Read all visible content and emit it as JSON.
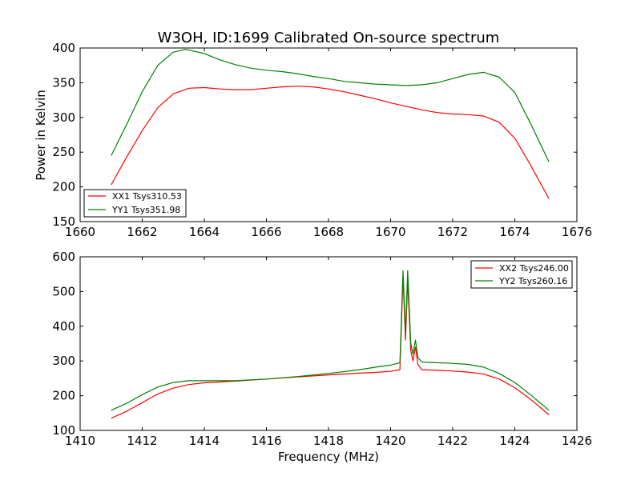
{
  "chart_data": [
    {
      "type": "line",
      "title": "W3OH, ID:1699 Calibrated On-source spectrum",
      "xlabel": "",
      "ylabel": "Power in Kelvin",
      "xlim": [
        1660,
        1676
      ],
      "ylim": [
        150,
        400
      ],
      "x_ticks": [
        "1660",
        "1662",
        "1664",
        "1666",
        "1668",
        "1670",
        "1672",
        "1674",
        "1676"
      ],
      "y_ticks": [
        "150",
        "200",
        "250",
        "300",
        "350",
        "400"
      ],
      "legend_position": "lower-left",
      "series": [
        {
          "name": "XX1 Tsys310.53",
          "color": "#ff0000",
          "points": [
            [
              1661.0,
              203
            ],
            [
              1661.5,
              243
            ],
            [
              1662.0,
              281
            ],
            [
              1662.5,
              314
            ],
            [
              1663.0,
              334
            ],
            [
              1663.5,
              342
            ],
            [
              1664.0,
              343
            ],
            [
              1664.5,
              341
            ],
            [
              1665.0,
              340
            ],
            [
              1665.5,
              340
            ],
            [
              1666.0,
              342
            ],
            [
              1666.5,
              344
            ],
            [
              1667.0,
              345
            ],
            [
              1667.5,
              344
            ],
            [
              1668.0,
              341
            ],
            [
              1668.5,
              337
            ],
            [
              1669.0,
              332
            ],
            [
              1669.5,
              327
            ],
            [
              1670.0,
              321
            ],
            [
              1670.5,
              316
            ],
            [
              1671.0,
              311
            ],
            [
              1671.5,
              307
            ],
            [
              1672.0,
              305
            ],
            [
              1672.5,
              304
            ],
            [
              1673.0,
              302
            ],
            [
              1673.5,
              293
            ],
            [
              1674.0,
              270
            ],
            [
              1674.5,
              232
            ],
            [
              1675.1,
              183
            ]
          ]
        },
        {
          "name": "YY1 Tsys351.98",
          "color": "#008000",
          "points": [
            [
              1661.0,
              245
            ],
            [
              1661.5,
              290
            ],
            [
              1662.0,
              337
            ],
            [
              1662.5,
              375
            ],
            [
              1663.0,
              394
            ],
            [
              1663.4,
              398
            ],
            [
              1664.0,
              392
            ],
            [
              1664.5,
              383
            ],
            [
              1665.0,
              376
            ],
            [
              1665.5,
              371
            ],
            [
              1666.0,
              368
            ],
            [
              1666.5,
              366
            ],
            [
              1667.0,
              363
            ],
            [
              1667.5,
              359
            ],
            [
              1668.0,
              356
            ],
            [
              1668.5,
              352
            ],
            [
              1669.0,
              350
            ],
            [
              1669.5,
              348
            ],
            [
              1670.0,
              347
            ],
            [
              1670.5,
              346
            ],
            [
              1671.0,
              347
            ],
            [
              1671.5,
              350
            ],
            [
              1672.0,
              356
            ],
            [
              1672.5,
              362
            ],
            [
              1673.0,
              365
            ],
            [
              1673.5,
              358
            ],
            [
              1674.0,
              336
            ],
            [
              1674.5,
              292
            ],
            [
              1675.1,
              236
            ]
          ]
        }
      ]
    },
    {
      "type": "line",
      "title": "",
      "xlabel": "Frequency (MHz)",
      "ylabel": "",
      "xlim": [
        1410,
        1426
      ],
      "ylim": [
        100,
        600
      ],
      "x_ticks": [
        "1410",
        "1412",
        "1414",
        "1416",
        "1418",
        "1420",
        "1422",
        "1424",
        "1426"
      ],
      "y_ticks": [
        "100",
        "200",
        "300",
        "400",
        "500",
        "600"
      ],
      "legend_position": "upper-right",
      "series": [
        {
          "name": "XX2 Tsys246.00",
          "color": "#ff0000",
          "points": [
            [
              1411.0,
              135
            ],
            [
              1411.5,
              155
            ],
            [
              1412.0,
              180
            ],
            [
              1412.5,
              205
            ],
            [
              1413.0,
              222
            ],
            [
              1413.5,
              232
            ],
            [
              1414.0,
              237
            ],
            [
              1415.0,
              242
            ],
            [
              1416.0,
              248
            ],
            [
              1417.0,
              254
            ],
            [
              1418.0,
              260
            ],
            [
              1419.0,
              265
            ],
            [
              1419.5,
              267
            ],
            [
              1420.0,
              270
            ],
            [
              1420.3,
              275
            ],
            [
              1420.4,
              540
            ],
            [
              1420.48,
              360
            ],
            [
              1420.55,
              530
            ],
            [
              1420.65,
              330
            ],
            [
              1420.72,
              300
            ],
            [
              1420.8,
              340
            ],
            [
              1420.88,
              290
            ],
            [
              1421.0,
              275
            ],
            [
              1421.5,
              273
            ],
            [
              1422.0,
              271
            ],
            [
              1422.5,
              268
            ],
            [
              1423.0,
              262
            ],
            [
              1423.5,
              248
            ],
            [
              1424.0,
              223
            ],
            [
              1424.5,
              190
            ],
            [
              1425.1,
              145
            ]
          ]
        },
        {
          "name": "YY2 Tsys260.16",
          "color": "#008000",
          "points": [
            [
              1411.0,
              158
            ],
            [
              1411.5,
              178
            ],
            [
              1412.0,
              203
            ],
            [
              1412.5,
              225
            ],
            [
              1413.0,
              238
            ],
            [
              1413.5,
              243
            ],
            [
              1414.0,
              243
            ],
            [
              1415.0,
              243
            ],
            [
              1416.0,
              248
            ],
            [
              1417.0,
              255
            ],
            [
              1418.0,
              264
            ],
            [
              1419.0,
              275
            ],
            [
              1419.5,
              282
            ],
            [
              1420.0,
              288
            ],
            [
              1420.3,
              295
            ],
            [
              1420.4,
              560
            ],
            [
              1420.48,
              380
            ],
            [
              1420.55,
              560
            ],
            [
              1420.65,
              350
            ],
            [
              1420.72,
              320
            ],
            [
              1420.8,
              360
            ],
            [
              1420.88,
              310
            ],
            [
              1421.0,
              297
            ],
            [
              1421.5,
              295
            ],
            [
              1422.0,
              293
            ],
            [
              1422.5,
              290
            ],
            [
              1423.0,
              282
            ],
            [
              1423.5,
              264
            ],
            [
              1424.0,
              238
            ],
            [
              1424.5,
              203
            ],
            [
              1425.1,
              158
            ]
          ]
        }
      ]
    }
  ]
}
